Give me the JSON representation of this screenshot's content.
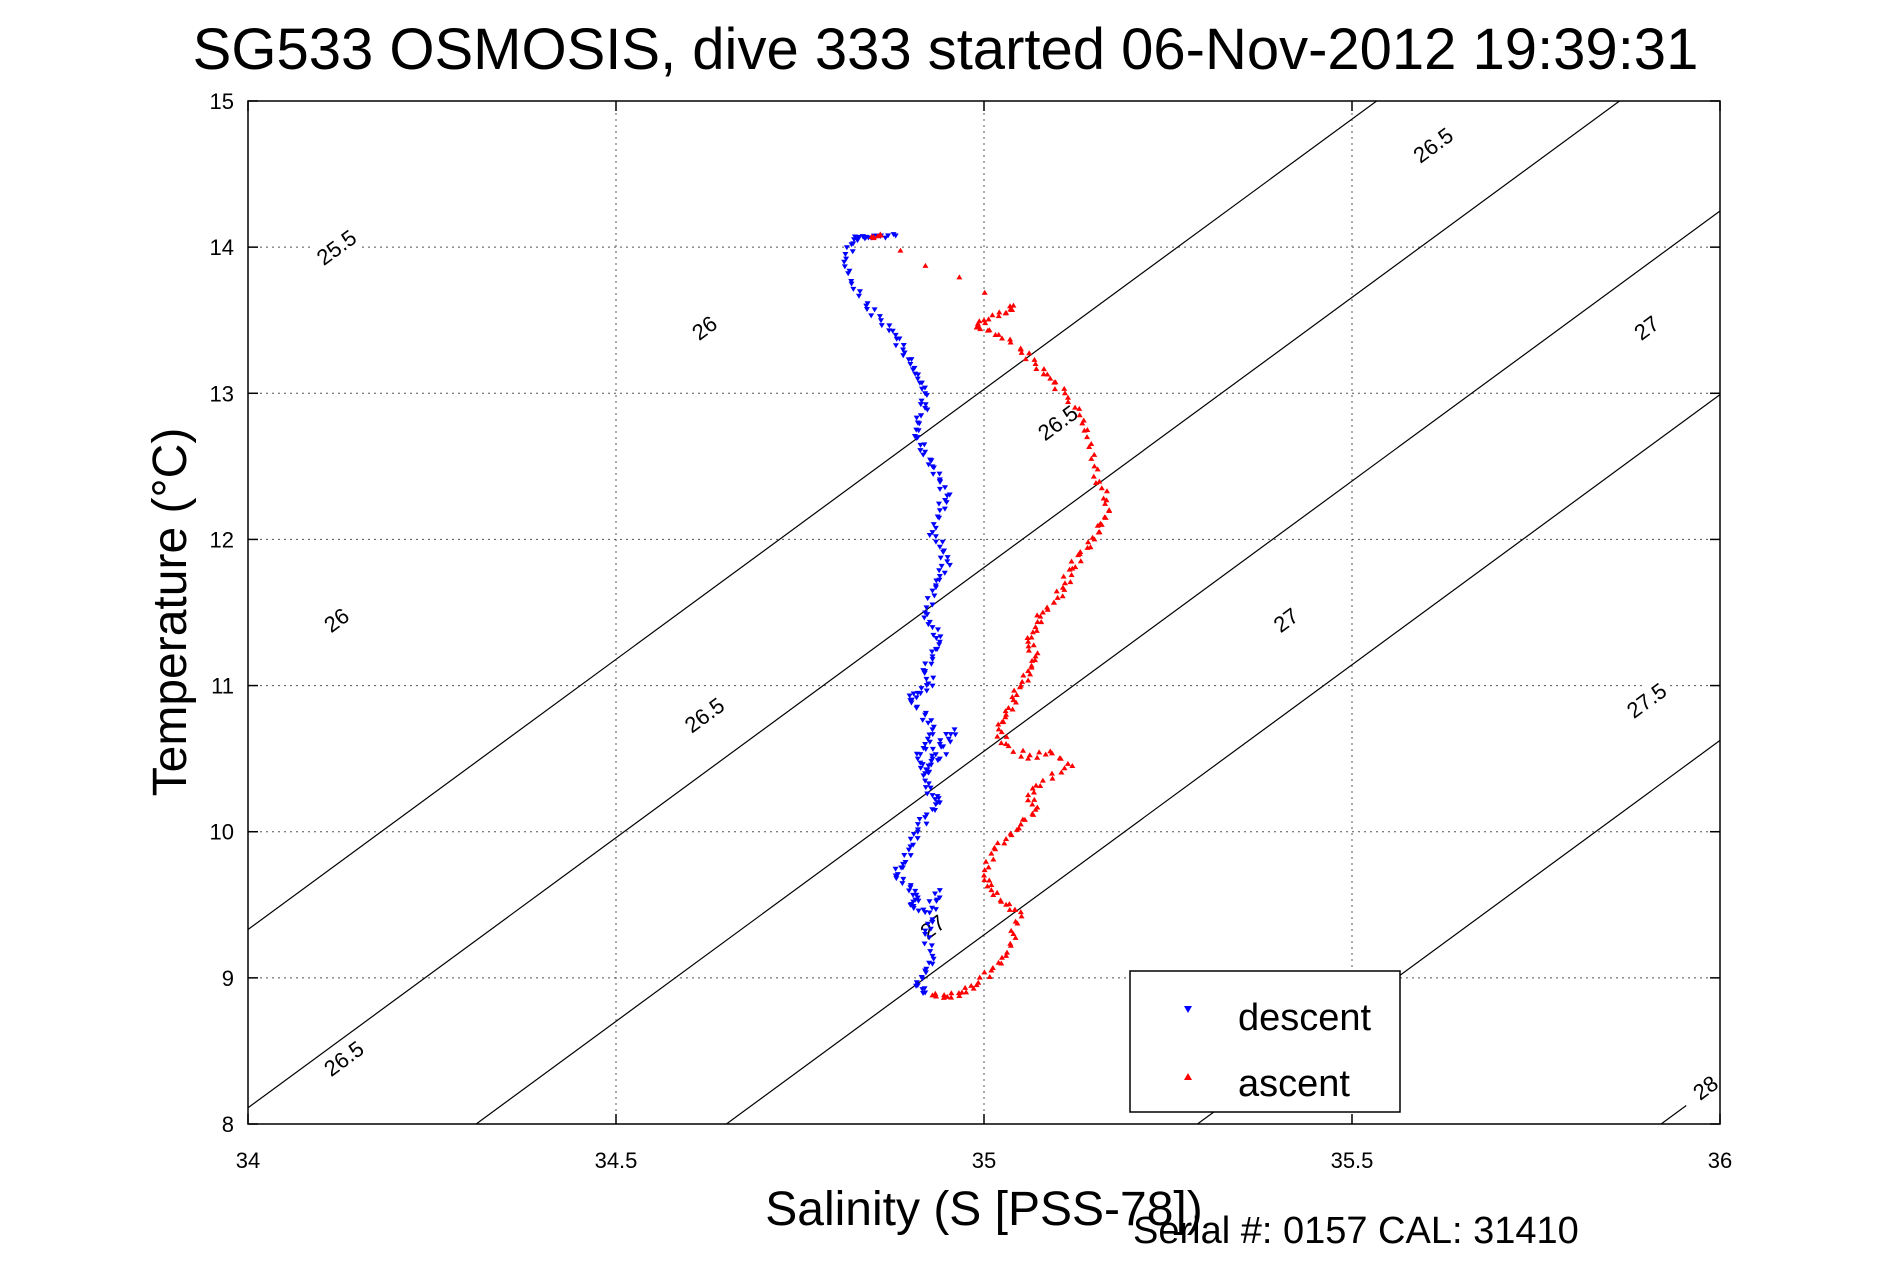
{
  "chart_data": {
    "type": "scatter",
    "title": "SG533 OSMOSIS, dive 333 started 06-Nov-2012 19:39:31",
    "xlabel": "Salinity (S [PSS-78])",
    "ylabel": "Temperature (°C)",
    "xlim": [
      34,
      36
    ],
    "ylim": [
      8,
      15
    ],
    "xticks": [
      "34",
      "34.5",
      "35",
      "35.5",
      "36"
    ],
    "yticks": [
      "8",
      "9",
      "10",
      "11",
      "12",
      "13",
      "14",
      "15"
    ],
    "grid": true,
    "legend_position": "bottom-right",
    "footer": "Serial #: 0157  CAL: 31410",
    "density_contours": [
      {
        "label": "25.5",
        "s_at_t8": 33.64,
        "label_positions": [
          {
            "S": 34.12,
            "T": 14.0
          }
        ]
      },
      {
        "label": "26",
        "s_at_t8": 33.97,
        "label_positions": [
          {
            "S": 34.12,
            "T": 11.45
          },
          {
            "S": 34.62,
            "T": 13.45
          }
        ]
      },
      {
        "label": "26.5",
        "s_at_t8": 34.31,
        "label_positions": [
          {
            "S": 34.13,
            "T": 8.45
          },
          {
            "S": 34.62,
            "T": 10.8
          },
          {
            "S": 35.1,
            "T": 12.8
          },
          {
            "S": 35.61,
            "T": 14.7
          }
        ]
      },
      {
        "label": "27",
        "s_at_t8": 34.65,
        "label_positions": [
          {
            "S": 34.93,
            "T": 9.35
          },
          {
            "S": 35.41,
            "T": 11.45
          },
          {
            "S": 35.9,
            "T": 13.45
          }
        ]
      },
      {
        "label": "27.5",
        "s_at_t8": 35.29,
        "label_positions": [
          {
            "S": 35.9,
            "T": 10.9
          }
        ]
      },
      {
        "label": "28",
        "s_at_t8": 35.92,
        "label_positions": [
          {
            "S": 35.98,
            "T": 8.25
          }
        ]
      }
    ],
    "series": [
      {
        "name": "descent",
        "color": "#0000ff",
        "marker": "triangle-down",
        "x": [
          34.88,
          34.86,
          34.84,
          34.83,
          34.82,
          34.81,
          34.82,
          34.84,
          34.86,
          34.88,
          34.89,
          34.9,
          34.91,
          34.92,
          34.92,
          34.91,
          34.91,
          34.92,
          34.93,
          34.94,
          34.95,
          34.94,
          34.93,
          34.94,
          34.95,
          34.94,
          34.93,
          34.92,
          34.93,
          34.94,
          34.93,
          34.92,
          34.93,
          34.91,
          34.9,
          34.92,
          34.93,
          34.92,
          34.91,
          34.92,
          34.94,
          34.96,
          34.94,
          34.93,
          34.92,
          34.93,
          34.94,
          34.92,
          34.91,
          34.9,
          34.89,
          34.88,
          34.9,
          34.91,
          34.9,
          34.92,
          34.94,
          34.93,
          34.92,
          34.93,
          34.92,
          34.91,
          34.92
        ],
        "y": [
          14.08,
          14.08,
          14.07,
          14.07,
          14.02,
          13.9,
          13.75,
          13.6,
          13.5,
          13.4,
          13.3,
          13.2,
          13.1,
          13.0,
          12.9,
          12.8,
          12.7,
          12.6,
          12.5,
          12.4,
          12.3,
          12.2,
          12.05,
          11.95,
          11.85,
          11.75,
          11.65,
          11.5,
          11.4,
          11.3,
          11.2,
          11.1,
          11.0,
          10.95,
          10.9,
          10.8,
          10.7,
          10.6,
          10.5,
          10.4,
          10.5,
          10.7,
          10.6,
          10.5,
          10.35,
          10.25,
          10.2,
          10.1,
          10.0,
          9.9,
          9.78,
          9.7,
          9.62,
          9.55,
          9.5,
          9.45,
          9.6,
          9.4,
          9.3,
          9.15,
          9.05,
          8.95,
          8.9
        ]
      },
      {
        "name": "ascent",
        "color": "#ff0000",
        "marker": "triangle-up",
        "x": [
          34.86,
          34.85,
          35.04,
          35.03,
          35.0,
          34.99,
          35.02,
          35.05,
          35.07,
          35.09,
          35.11,
          35.13,
          35.14,
          35.15,
          35.16,
          35.17,
          35.16,
          35.15,
          35.13,
          35.12,
          35.11,
          35.1,
          35.08,
          35.07,
          35.06,
          35.07,
          35.06,
          35.05,
          35.04,
          35.03,
          35.02,
          35.03,
          35.06,
          35.09,
          35.12,
          35.08,
          35.06,
          35.07,
          35.05,
          35.03,
          35.01,
          35.0,
          35.01,
          35.03,
          35.05,
          35.04,
          35.03,
          35.01,
          34.99,
          34.97,
          34.95,
          34.93
        ],
        "y": [
          14.08,
          14.07,
          13.6,
          13.55,
          13.5,
          13.45,
          13.4,
          13.3,
          13.2,
          13.1,
          13.0,
          12.85,
          12.7,
          12.5,
          12.35,
          12.2,
          12.1,
          12.0,
          11.9,
          11.8,
          11.7,
          11.6,
          11.5,
          11.4,
          11.3,
          11.2,
          11.1,
          11.0,
          10.9,
          10.8,
          10.7,
          10.6,
          10.5,
          10.55,
          10.45,
          10.35,
          10.25,
          10.15,
          10.05,
          9.95,
          9.85,
          9.7,
          9.6,
          9.5,
          9.45,
          9.3,
          9.15,
          9.05,
          8.95,
          8.9,
          8.87,
          8.88
        ]
      }
    ]
  }
}
